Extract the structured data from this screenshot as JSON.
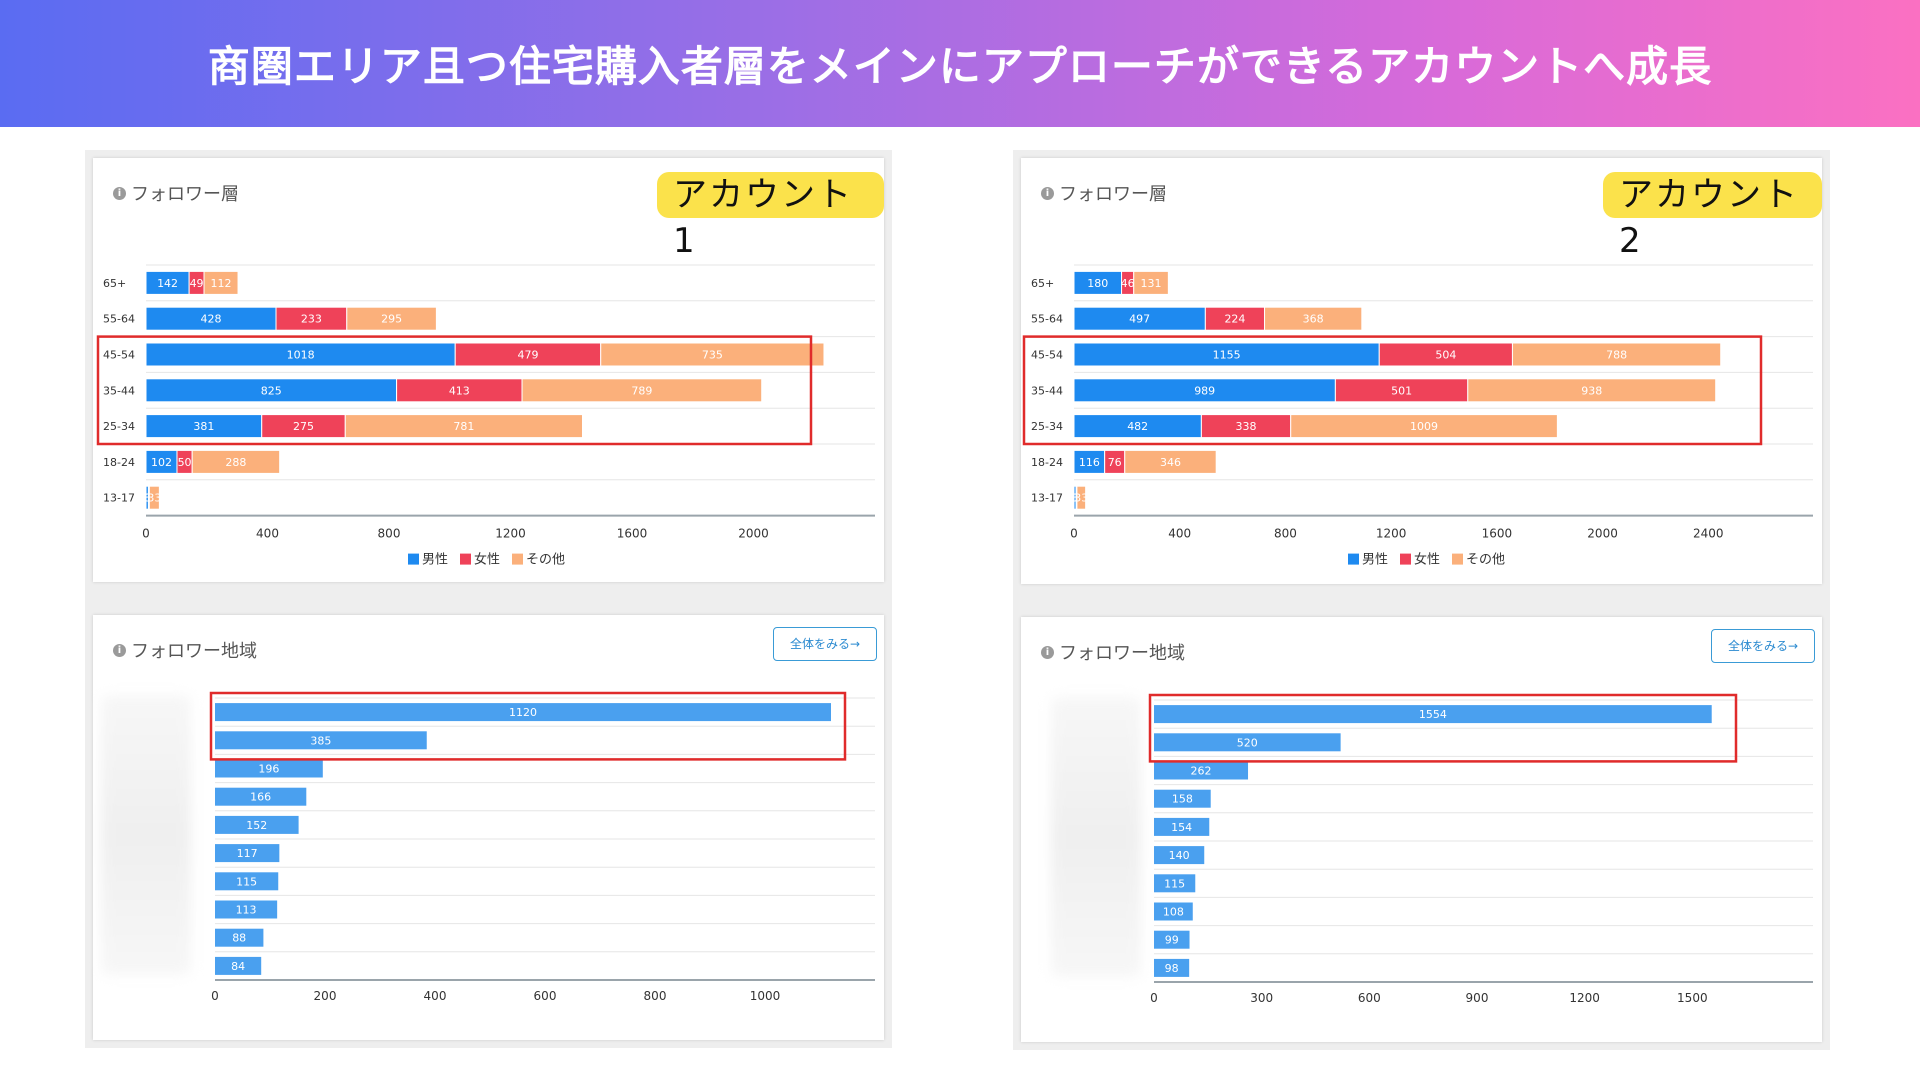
{
  "header": {
    "title": "商圏エリア且つ住宅購入者層をメインにアプローチができるアカウントへ成長"
  },
  "accounts": [
    {
      "badge": "アカウント1",
      "age_title": "フォロワー層",
      "region_title": "フォロワー地域",
      "view_all": "全体をみる→",
      "info": "i"
    },
    {
      "badge": "アカウント2",
      "age_title": "フォロワー層",
      "region_title": "フォロワー地域",
      "view_all": "全体をみる→",
      "info": "i"
    }
  ],
  "colors": {
    "male": "#1e8af0",
    "female": "#ef4259",
    "other": "#fbb07b",
    "region": "#4aa0ef",
    "highlight": "#e02b2b",
    "axis": "#9aa4ab"
  },
  "chart_data": [
    {
      "type": "bar",
      "stacked": true,
      "orientation": "horizontal",
      "title": "フォロワー層",
      "categories": [
        "65+",
        "55-64",
        "45-54",
        "35-44",
        "25-34",
        "18-24",
        "13-17"
      ],
      "series": [
        {
          "name": "男性",
          "values": [
            142,
            428,
            1018,
            825,
            381,
            102,
            8
          ]
        },
        {
          "name": "女性",
          "values": [
            49,
            233,
            479,
            413,
            275,
            50,
            3
          ]
        },
        {
          "name": "その他",
          "values": [
            112,
            295,
            735,
            789,
            781,
            288,
            33
          ]
        }
      ],
      "xticks": [
        0,
        400,
        800,
        1200,
        1600,
        2000
      ],
      "xlim": [
        0,
        2400
      ],
      "legend": [
        "男性",
        "女性",
        "その他"
      ],
      "highlight_categories": [
        "45-54",
        "35-44",
        "25-34"
      ]
    },
    {
      "type": "bar",
      "stacked": true,
      "orientation": "horizontal",
      "title": "フォロワー層",
      "categories": [
        "65+",
        "55-64",
        "45-54",
        "35-44",
        "25-34",
        "18-24",
        "13-17"
      ],
      "series": [
        {
          "name": "男性",
          "values": [
            180,
            497,
            1155,
            989,
            482,
            116,
            8
          ]
        },
        {
          "name": "女性",
          "values": [
            46,
            224,
            504,
            501,
            338,
            76,
            3
          ]
        },
        {
          "name": "その他",
          "values": [
            131,
            368,
            788,
            938,
            1009,
            346,
            33
          ]
        }
      ],
      "xticks": [
        0,
        400,
        800,
        1200,
        1600,
        2000,
        2400
      ],
      "xlim": [
        0,
        2800
      ],
      "legend": [
        "男性",
        "女性",
        "その他"
      ],
      "highlight_categories": [
        "45-54",
        "35-44",
        "25-34"
      ]
    },
    {
      "type": "bar",
      "orientation": "horizontal",
      "title": "フォロワー地域",
      "values": [
        1120,
        385,
        196,
        166,
        152,
        117,
        115,
        113,
        88,
        84
      ],
      "xticks": [
        0,
        200,
        400,
        600,
        800,
        1000
      ],
      "xlim": [
        0,
        1200
      ],
      "highlight_top": 2
    },
    {
      "type": "bar",
      "orientation": "horizontal",
      "title": "フォロワー地域",
      "values": [
        1554,
        520,
        262,
        158,
        154,
        140,
        115,
        108,
        99,
        98
      ],
      "xticks": [
        0,
        300,
        600,
        900,
        1200,
        1500
      ],
      "xlim": [
        0,
        1800
      ],
      "highlight_top": 2
    }
  ]
}
